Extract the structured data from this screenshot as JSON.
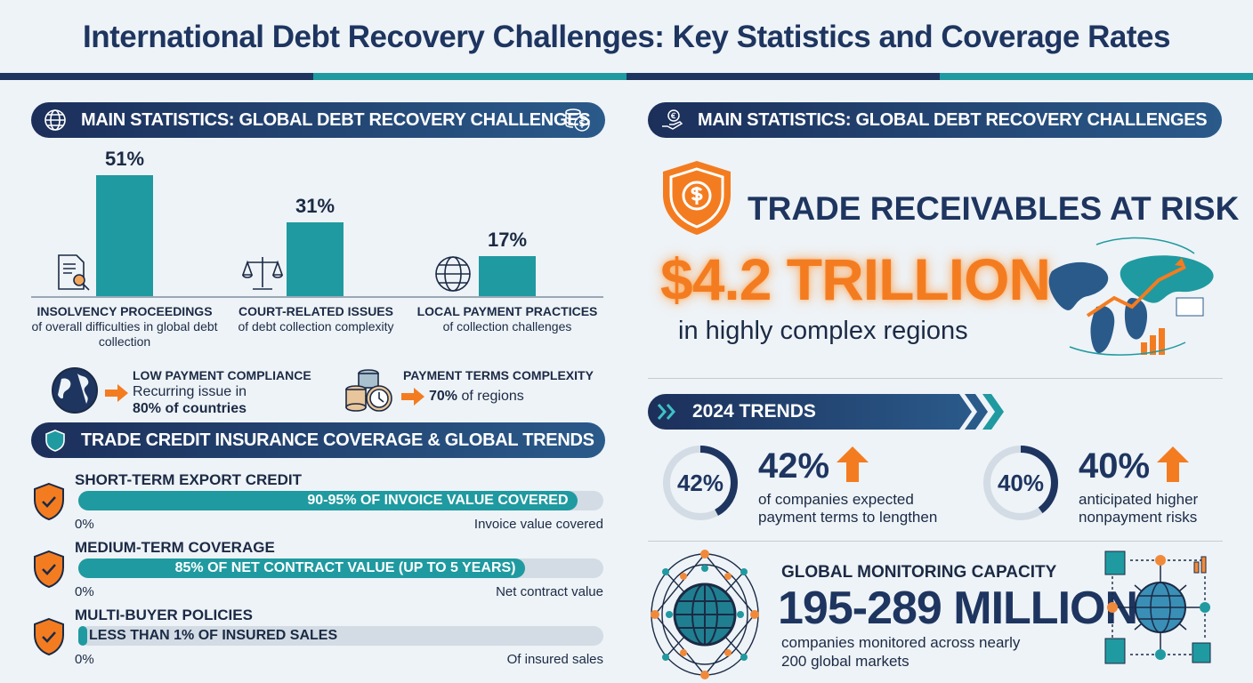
{
  "title": "International Debt Recovery Challenges: Key Statistics and Coverage Rates",
  "left_header": "MAIN STATISTICS: GLOBAL DEBT RECOVERY CHALLENGES",
  "right_header": "MAIN STATISTICS: GLOBAL DEBT RECOVERY CHALLENGES",
  "chart_data": {
    "type": "bar",
    "categories": [
      "INSOLVENCY PROCEEDINGS",
      "COURT-RELATED ISSUES",
      "LOCAL PAYMENT PRACTICES"
    ],
    "values": [
      51,
      31,
      17
    ],
    "value_labels": [
      "51%",
      "31%",
      "17%"
    ],
    "descriptions": [
      "of overall difficulties in global debt collection",
      "of debt collection complexity",
      "of collection challenges"
    ],
    "ylim": [
      0,
      60
    ]
  },
  "callouts": [
    {
      "title": "LOW PAYMENT COMPLIANCE",
      "line1": "Recurring issue in",
      "line2": "80% of countries"
    },
    {
      "title": "PAYMENT TERMS COMPLEXITY",
      "strong": "70%",
      "rest": " of regions"
    }
  ],
  "insurance_header": "TRADE CREDIT INSURANCE COVERAGE & GLOBAL TRENDS",
  "coverage": [
    {
      "title": "SHORT-TERM EXPORT CREDIT",
      "bar_text": "90-95% OF INVOICE VALUE COVERED",
      "fill_percent": 95,
      "min": "0%",
      "max_label": "Invoice value covered"
    },
    {
      "title": "MEDIUM-TERM COVERAGE",
      "bar_text": "85% OF NET CONTRACT VALUE (UP TO 5 YEARS)",
      "fill_percent": 85,
      "min": "0%",
      "max_label": "Net contract value"
    },
    {
      "title": "MULTI-BUYER POLICIES",
      "bar_text": "LESS THAN 1% OF INSURED SALES",
      "fill_percent": 1,
      "min": "0%",
      "max_label": "Of insured sales"
    }
  ],
  "risk": {
    "title": "TRADE RECEIVABLES AT RISK",
    "amount": "$4.2 TRILLION",
    "sub": "in highly complex regions"
  },
  "trends": {
    "header": "2024 TRENDS",
    "items": [
      {
        "ring": "42%",
        "value": "42%",
        "percent": 42,
        "desc1": "of companies expected",
        "desc2": "payment terms to lengthen"
      },
      {
        "ring": "40%",
        "value": "40%",
        "percent": 40,
        "desc1": "anticipated higher",
        "desc2": "nonpayment risks"
      }
    ]
  },
  "monitoring": {
    "title": "GLOBAL MONITORING CAPACITY",
    "value": "195-289 MILLION",
    "desc1": "companies monitored across nearly",
    "desc2": "200 global markets"
  },
  "colors": {
    "navy": "#1e3560",
    "teal": "#1f9aa0",
    "orange": "#f47c20"
  }
}
